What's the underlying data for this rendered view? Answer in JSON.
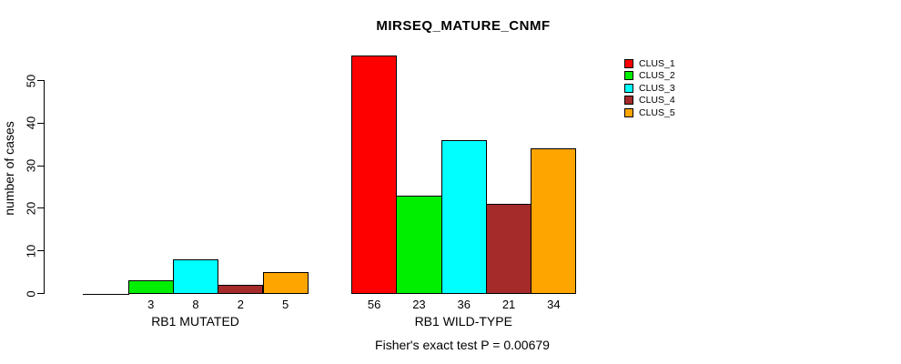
{
  "title": "MIRSEQ_MATURE_CNMF",
  "subtitle": "Fisher's exact test P = 0.00679",
  "chart_data": {
    "type": "bar",
    "title": "MIRSEQ_MATURE_CNMF",
    "xlabel": "",
    "ylabel": "number of cases",
    "annotation": "Fisher's exact test P = 0.00679",
    "categories": [
      "RB1 MUTATED",
      "RB1 WILD-TYPE"
    ],
    "series": [
      {
        "name": "CLUS_1",
        "color": "#ff0000",
        "values": [
          0,
          56
        ],
        "labels": [
          "",
          "56"
        ]
      },
      {
        "name": "CLUS_2",
        "color": "#00ee00",
        "values": [
          3,
          23
        ],
        "labels": [
          "3",
          "23"
        ]
      },
      {
        "name": "CLUS_3",
        "color": "#00ffff",
        "values": [
          8,
          36
        ],
        "labels": [
          "8",
          "36"
        ]
      },
      {
        "name": "CLUS_4",
        "color": "#a52a2a",
        "values": [
          2,
          21
        ],
        "labels": [
          "2",
          "21"
        ]
      },
      {
        "name": "CLUS_5",
        "color": "#ffa500",
        "values": [
          5,
          34
        ],
        "labels": [
          "5",
          "34"
        ]
      }
    ],
    "yticks": [
      0,
      10,
      20,
      30,
      40,
      50
    ],
    "ylim": [
      0,
      56
    ],
    "grid": false,
    "legend_position": "top-right",
    "legend": [
      "CLUS_1",
      "CLUS_2",
      "CLUS_3",
      "CLUS_4",
      "CLUS_5"
    ],
    "bar_border_color": "#000000",
    "text_color": "#000000",
    "background_color": "#ffffff"
  }
}
